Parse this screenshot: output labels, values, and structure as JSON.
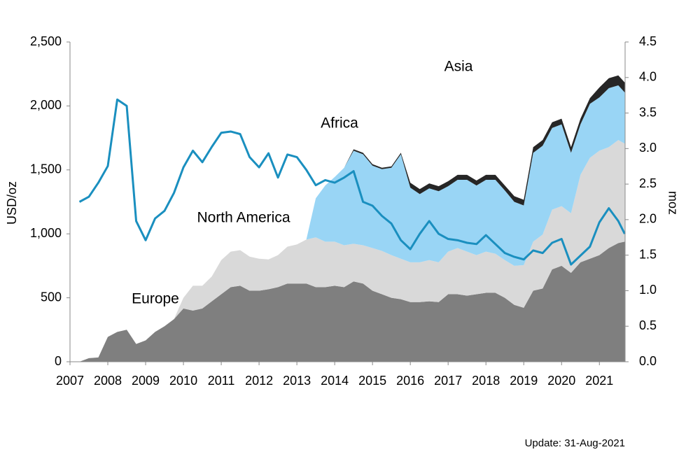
{
  "chart_data": {
    "type": "combo",
    "ylabel": "USD/oz",
    "y2label": "moz",
    "footnote": "Update: 31-Aug-2021",
    "xlim": [
      2007,
      2021.68
    ],
    "xticks": [
      2007,
      2008,
      2009,
      2010,
      2011,
      2012,
      2013,
      2014,
      2015,
      2016,
      2017,
      2018,
      2019,
      2020,
      2021
    ],
    "ylim": [
      0,
      2500
    ],
    "yticks": [
      0,
      500,
      {
        "value": 1000,
        "label": "1,000"
      },
      {
        "value": 1500,
        "label": "1,500"
      },
      {
        "value": 2000,
        "label": "2,000"
      },
      {
        "value": 2500,
        "label": "2,500"
      }
    ],
    "y2lim": [
      0,
      4.5
    ],
    "y2ticks": [
      {
        "value": 0,
        "label": "0.0"
      },
      0.5,
      {
        "value": 1,
        "label": "1.0"
      },
      1.5,
      {
        "value": 2,
        "label": "2.0"
      },
      2.5,
      {
        "value": 3,
        "label": "3.0"
      },
      3.5,
      {
        "value": 4,
        "label": "4.0"
      },
      4.5
    ],
    "x": [
      2007.25,
      2007.5,
      2007.75,
      2008,
      2008.25,
      2008.5,
      2008.75,
      2009,
      2009.25,
      2009.5,
      2009.75,
      2010,
      2010.25,
      2010.5,
      2010.75,
      2011,
      2011.25,
      2011.5,
      2011.75,
      2012,
      2012.25,
      2012.5,
      2012.75,
      2013,
      2013.25,
      2013.5,
      2013.75,
      2014,
      2014.25,
      2014.5,
      2014.75,
      2015,
      2015.25,
      2015.5,
      2015.75,
      2016,
      2016.25,
      2016.5,
      2016.75,
      2017,
      2017.25,
      2017.5,
      2017.75,
      2018,
      2018.25,
      2018.5,
      2018.75,
      2019,
      2019.25,
      2019.5,
      2019.75,
      2020,
      2020.25,
      2020.5,
      2020.75,
      2021,
      2021.25,
      2021.5,
      2021.67
    ],
    "series": [
      {
        "name": "Europe",
        "kind": "area",
        "axis": "y2",
        "color": "#7f7f7f",
        "values": [
          0,
          0.05,
          0.06,
          0.35,
          0.42,
          0.45,
          0.25,
          0.3,
          0.42,
          0.5,
          0.6,
          0.75,
          0.72,
          0.75,
          0.85,
          0.95,
          1.05,
          1.07,
          1.0,
          1.0,
          1.02,
          1.05,
          1.1,
          1.1,
          1.1,
          1.05,
          1.05,
          1.07,
          1.05,
          1.13,
          1.1,
          1.0,
          0.95,
          0.9,
          0.88,
          0.84,
          0.84,
          0.85,
          0.84,
          0.95,
          0.95,
          0.93,
          0.95,
          0.97,
          0.97,
          0.9,
          0.8,
          0.76,
          1.0,
          1.03,
          1.3,
          1.35,
          1.25,
          1.4,
          1.45,
          1.5,
          1.6,
          1.67,
          1.69
        ]
      },
      {
        "name": "North America",
        "kind": "area",
        "axis": "y2",
        "color": "#d9d9d9",
        "values": [
          0,
          0,
          0,
          0,
          0,
          0,
          0,
          0,
          0,
          0,
          0,
          0.15,
          0.35,
          0.32,
          0.35,
          0.48,
          0.5,
          0.5,
          0.48,
          0.45,
          0.42,
          0.45,
          0.52,
          0.55,
          0.62,
          0.7,
          0.64,
          0.62,
          0.59,
          0.53,
          0.54,
          0.6,
          0.61,
          0.6,
          0.57,
          0.56,
          0.56,
          0.58,
          0.56,
          0.6,
          0.65,
          0.62,
          0.55,
          0.58,
          0.55,
          0.53,
          0.55,
          0.6,
          0.69,
          0.76,
          0.84,
          0.84,
          0.84,
          1.23,
          1.42,
          1.47,
          1.42,
          1.45,
          1.38
        ]
      },
      {
        "name": "Africa",
        "kind": "area",
        "axis": "y2",
        "color": "#99d5f5",
        "values": [
          0,
          0,
          0,
          0,
          0,
          0,
          0,
          0,
          0,
          0,
          0,
          0,
          0,
          0,
          0,
          0,
          0,
          0,
          0,
          0,
          0,
          0,
          0,
          0,
          0,
          0.55,
          0.79,
          0.91,
          1.09,
          1.31,
          1.28,
          1.16,
          1.15,
          1.23,
          1.47,
          1.05,
          0.96,
          1.01,
          1.0,
          0.92,
          0.96,
          1.01,
          0.98,
          1.01,
          1.04,
          0.98,
          0.9,
          0.84,
          1.25,
          1.25,
          1.15,
          1.15,
          0.85,
          0.71,
          0.76,
          0.75,
          0.83,
          0.77,
          0.72
        ]
      },
      {
        "name": "Asia",
        "kind": "area",
        "axis": "y2",
        "color": "#262626",
        "values": [
          0,
          0,
          0,
          0,
          0,
          0,
          0,
          0,
          0,
          0,
          0,
          0,
          0,
          0,
          0,
          0,
          0,
          0,
          0,
          0,
          0,
          0,
          0,
          0,
          0,
          0,
          0,
          0,
          0,
          0.02,
          0.02,
          0.02,
          0.02,
          0.02,
          0.02,
          0.07,
          0.07,
          0.07,
          0.07,
          0.07,
          0.07,
          0.07,
          0.07,
          0.07,
          0.07,
          0.07,
          0.08,
          0.08,
          0.08,
          0.08,
          0.08,
          0.08,
          0.08,
          0.08,
          0.08,
          0.14,
          0.14,
          0.14,
          0.14
        ]
      },
      {
        "kind": "line",
        "axis": "y",
        "color": "#1a8fbf",
        "values": [
          1250,
          1290,
          1400,
          1530,
          2050,
          2000,
          1100,
          950,
          1120,
          1180,
          1320,
          1520,
          1650,
          1560,
          1680,
          1790,
          1800,
          1780,
          1600,
          1520,
          1630,
          1440,
          1620,
          1600,
          1500,
          1380,
          1420,
          1400,
          1440,
          1490,
          1250,
          1220,
          1140,
          1080,
          950,
          880,
          1000,
          1100,
          1000,
          960,
          950,
          930,
          920,
          990,
          920,
          850,
          820,
          800,
          870,
          850,
          930,
          960,
          760,
          830,
          900,
          1090,
          1200,
          1100,
          1000
        ]
      }
    ]
  }
}
